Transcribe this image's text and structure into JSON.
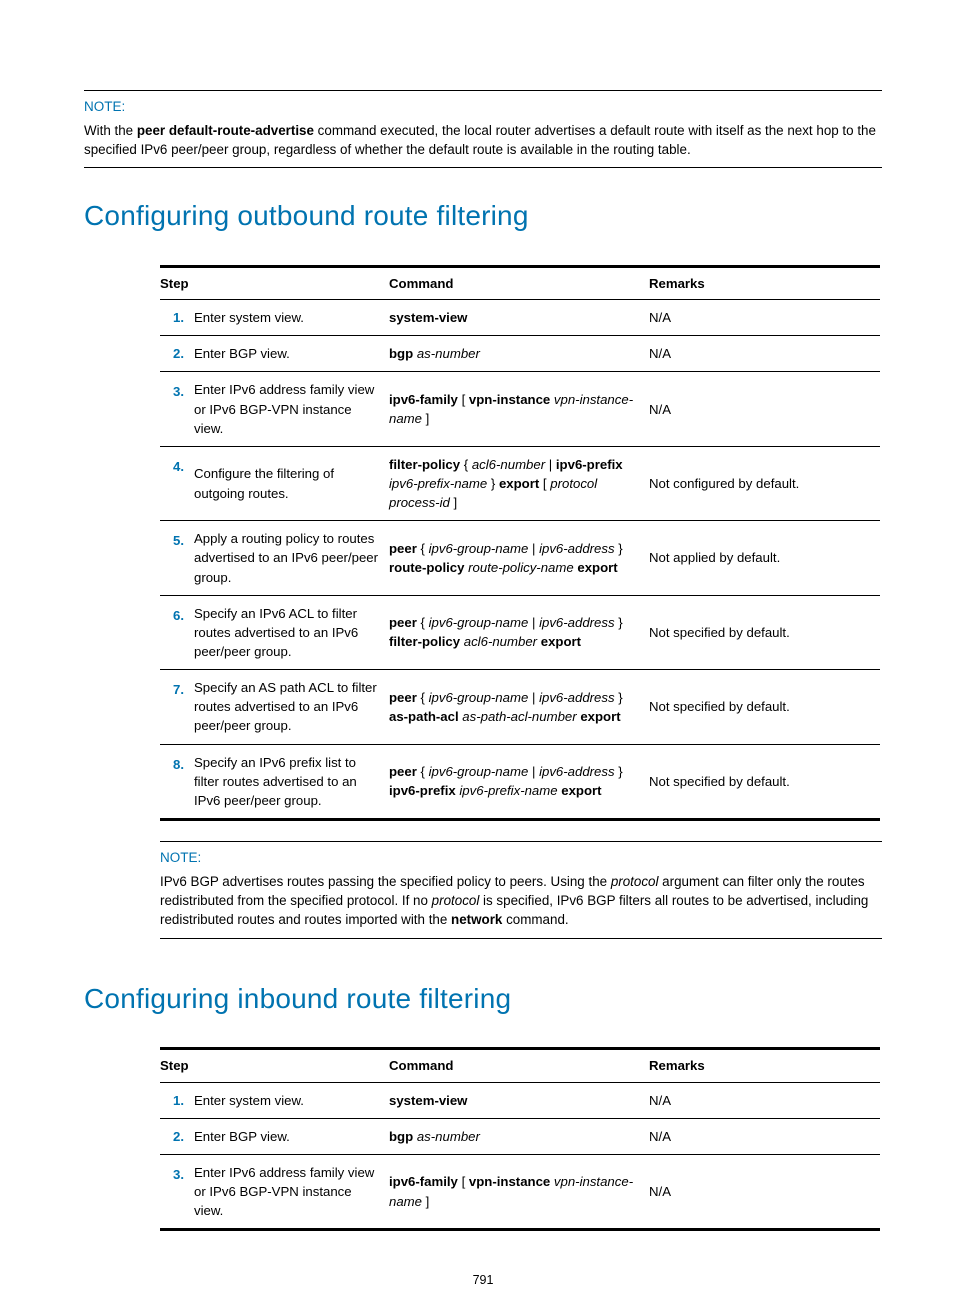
{
  "note1": {
    "label": "NOTE:",
    "text_parts": [
      "With the ",
      "peer default-route-advertise",
      " command executed, the local router advertises a default route with itself as the next hop to the specified IPv6 peer/peer group, regardless of whether the default route is available in the routing table."
    ]
  },
  "section1": {
    "heading": "Configuring outbound route filtering",
    "headers": {
      "step": "Step",
      "command": "Command",
      "remarks": "Remarks"
    },
    "rows": [
      {
        "num": "1.",
        "step": "Enter system view.",
        "cmd": [
          {
            "b": "system-view"
          }
        ],
        "remarks": "N/A"
      },
      {
        "num": "2.",
        "step": "Enter BGP view.",
        "cmd": [
          {
            "b": "bgp"
          },
          {
            "t": " "
          },
          {
            "i": "as-number"
          }
        ],
        "remarks": "N/A"
      },
      {
        "num": "3.",
        "step": "Enter IPv6 address family view or IPv6 BGP-VPN instance view.",
        "cmd": [
          {
            "b": "ipv6-family"
          },
          {
            "t": " [ "
          },
          {
            "b": "vpn-instance"
          },
          {
            "t": " "
          },
          {
            "i": "vpn-instance-name"
          },
          {
            "t": " ]"
          }
        ],
        "remarks": "N/A"
      },
      {
        "num": "4.",
        "step": "Configure the filtering of outgoing routes.",
        "cmd": [
          {
            "b": "filter-policy"
          },
          {
            "t": " { "
          },
          {
            "i": "acl6-number"
          },
          {
            "t": " | "
          },
          {
            "b": "ipv6-prefix"
          },
          {
            "t": " "
          },
          {
            "i": "ipv6-prefix-name"
          },
          {
            "t": " } "
          },
          {
            "b": "export"
          },
          {
            "t": " [ "
          },
          {
            "i": "protocol process-id"
          },
          {
            "t": " ]"
          }
        ],
        "remarks": "Not configured by default."
      },
      {
        "num": "5.",
        "step": "Apply a routing policy to routes advertised to an IPv6 peer/peer group.",
        "cmd": [
          {
            "b": "peer"
          },
          {
            "t": " { "
          },
          {
            "i": "ipv6-group-name"
          },
          {
            "t": " | "
          },
          {
            "i": "ipv6-address"
          },
          {
            "t": " } "
          },
          {
            "b": "route-policy"
          },
          {
            "t": " "
          },
          {
            "i": "route-policy-name"
          },
          {
            "t": " "
          },
          {
            "b": "export"
          }
        ],
        "remarks": "Not applied by default."
      },
      {
        "num": "6.",
        "step": "Specify an IPv6 ACL to filter routes advertised to an IPv6 peer/peer group.",
        "cmd": [
          {
            "b": "peer"
          },
          {
            "t": " { "
          },
          {
            "i": "ipv6-group-name"
          },
          {
            "t": " | "
          },
          {
            "i": "ipv6-address"
          },
          {
            "t": " } "
          },
          {
            "b": "filter-policy"
          },
          {
            "t": " "
          },
          {
            "i": "acl6-number"
          },
          {
            "t": " "
          },
          {
            "b": "export"
          }
        ],
        "remarks": "Not specified by default."
      },
      {
        "num": "7.",
        "step": "Specify an AS path ACL to filter routes advertised to an IPv6 peer/peer group.",
        "cmd": [
          {
            "b": "peer"
          },
          {
            "t": " { "
          },
          {
            "i": "ipv6-group-name"
          },
          {
            "t": " | "
          },
          {
            "i": "ipv6-address"
          },
          {
            "t": " } "
          },
          {
            "b": "as-path-acl"
          },
          {
            "t": " "
          },
          {
            "i": "as-path-acl-number"
          },
          {
            "t": " "
          },
          {
            "b": "export"
          }
        ],
        "remarks": "Not specified by default."
      },
      {
        "num": "8.",
        "step": "Specify an IPv6 prefix list to filter routes advertised to an IPv6 peer/peer group.",
        "cmd": [
          {
            "b": "peer"
          },
          {
            "t": " { "
          },
          {
            "i": "ipv6-group-name"
          },
          {
            "t": " | "
          },
          {
            "i": "ipv6-address"
          },
          {
            "t": " } "
          },
          {
            "b": "ipv6-prefix"
          },
          {
            "t": " "
          },
          {
            "i": "ipv6-prefix-name"
          },
          {
            "t": " "
          },
          {
            "b": "export"
          }
        ],
        "remarks": "Not specified by default."
      }
    ]
  },
  "note2": {
    "label": "NOTE:",
    "text_parts": [
      {
        "t": "IPv6 BGP advertises routes passing the specified policy to peers. Using the "
      },
      {
        "i": "protocol"
      },
      {
        "t": " argument can filter only the routes redistributed from the specified protocol. If no "
      },
      {
        "i": "protocol"
      },
      {
        "t": " is specified, IPv6 BGP filters all routes to be advertised, including redistributed routes and routes imported with the "
      },
      {
        "b": "network"
      },
      {
        "t": " command."
      }
    ]
  },
  "section2": {
    "heading": "Configuring inbound route filtering",
    "headers": {
      "step": "Step",
      "command": "Command",
      "remarks": "Remarks"
    },
    "rows": [
      {
        "num": "1.",
        "step": "Enter system view.",
        "cmd": [
          {
            "b": "system-view"
          }
        ],
        "remarks": "N/A"
      },
      {
        "num": "2.",
        "step": "Enter BGP view.",
        "cmd": [
          {
            "b": "bgp"
          },
          {
            "t": " "
          },
          {
            "i": "as-number"
          }
        ],
        "remarks": "N/A"
      },
      {
        "num": "3.",
        "step": "Enter IPv6 address family view or IPv6 BGP-VPN instance view.",
        "cmd": [
          {
            "b": "ipv6-family"
          },
          {
            "t": " [ "
          },
          {
            "b": "vpn-instance"
          },
          {
            "t": " "
          },
          {
            "i": "vpn-instance-name"
          },
          {
            "t": " ]"
          }
        ],
        "remarks": "N/A"
      }
    ]
  },
  "page_number": "791",
  "colors": {
    "accent": "#0073b0",
    "text": "#000000",
    "background": "#ffffff"
  },
  "typography": {
    "body_font": "Arial",
    "body_size_pt": 10,
    "heading_size_pt": 21,
    "heading_weight": 300
  }
}
